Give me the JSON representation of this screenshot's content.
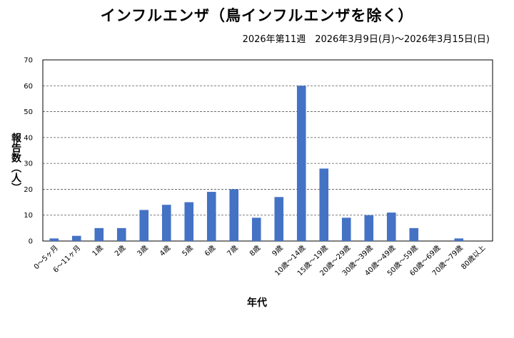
{
  "chart_data": {
    "type": "bar",
    "title": "インフルエンザ（鳥インフルエンザを除く）",
    "subtitle": "2026年第11週　2026年3月9日(月)〜2026年3月15日(日)",
    "xlabel": "年代",
    "ylabel": "報告数（人）",
    "ylim": [
      0,
      70
    ],
    "yticks": [
      0,
      10,
      20,
      30,
      40,
      50,
      60,
      70
    ],
    "grid": true,
    "bar_color": "#4472c4",
    "categories": [
      "0〜5ヶ月",
      "6〜11ヶ月",
      "1歳",
      "2歳",
      "3歳",
      "4歳",
      "5歳",
      "6歳",
      "7歳",
      "8歳",
      "9歳",
      "10歳〜14歳",
      "15歳〜19歳",
      "20歳〜29歳",
      "30歳〜39歳",
      "40歳〜49歳",
      "50歳〜59歳",
      "60歳〜69歳",
      "70歳〜79歳",
      "80歳以上"
    ],
    "values": [
      1,
      2,
      5,
      5,
      12,
      14,
      15,
      19,
      20,
      9,
      17,
      60,
      28,
      9,
      10,
      11,
      5,
      0,
      1,
      0
    ]
  }
}
